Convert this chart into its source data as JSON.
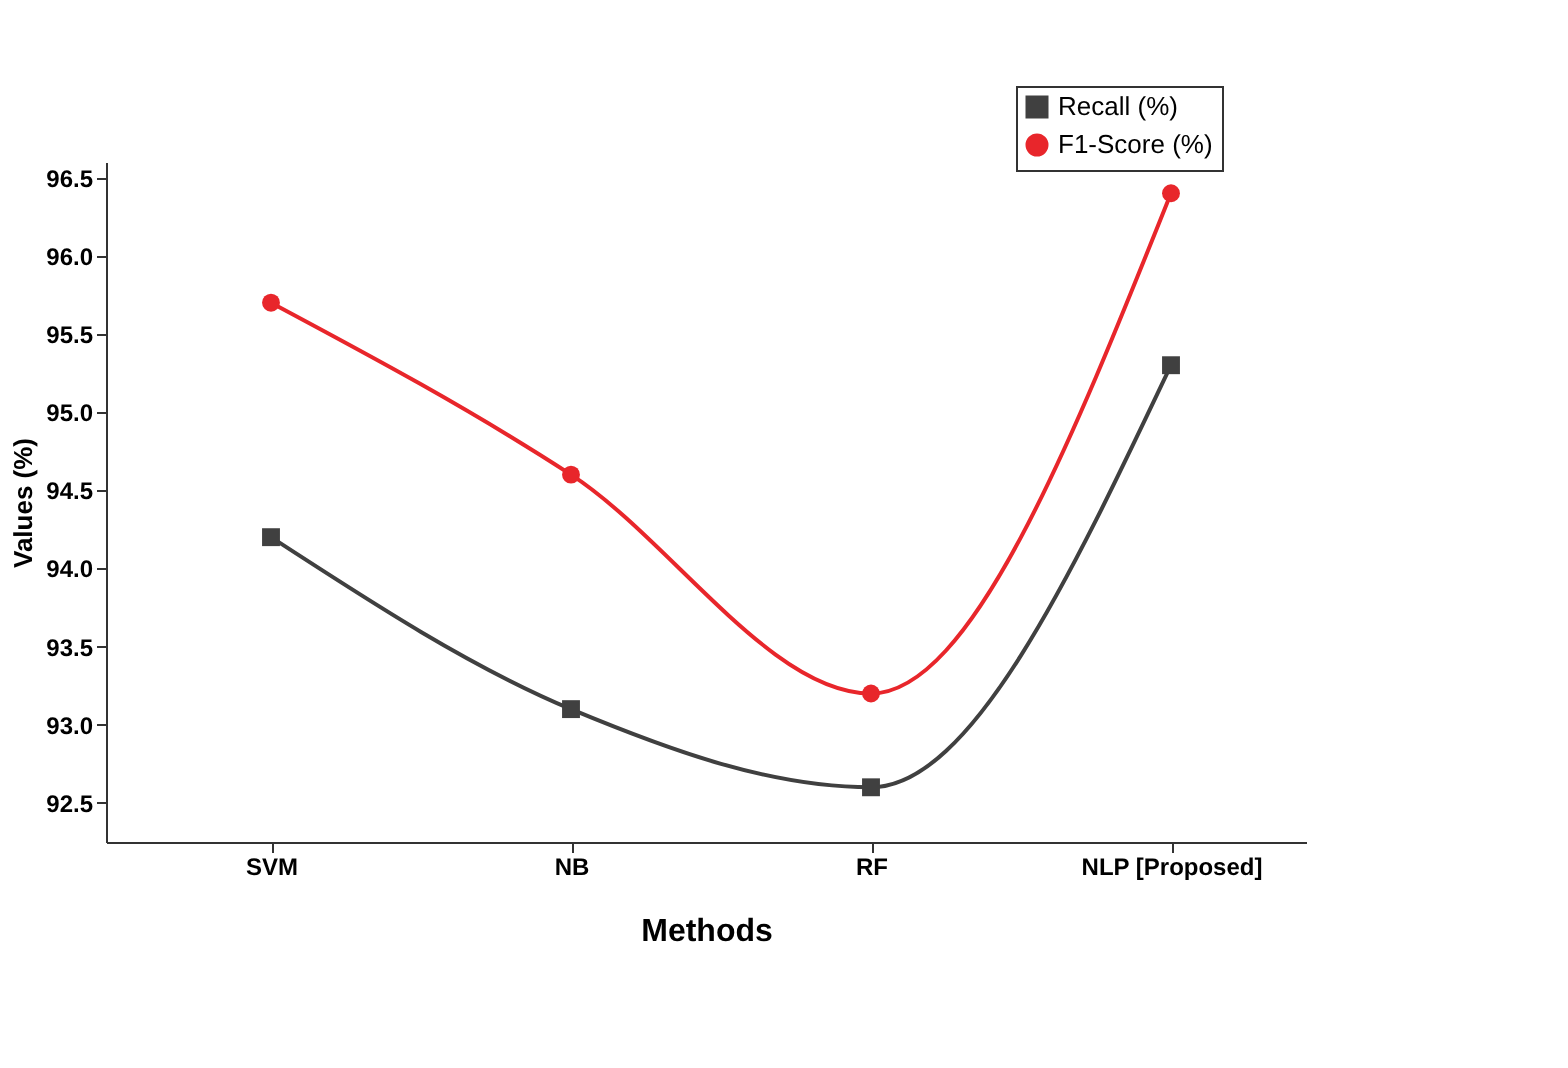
{
  "chart_data": {
    "type": "line",
    "xlabel": "Methods",
    "ylabel": "Values (%)",
    "categories": [
      "SVM",
      "NB",
      "RF",
      "NLP [Proposed]"
    ],
    "series": [
      {
        "name": "Recall (%)",
        "color": "#404040",
        "marker": "square",
        "values": [
          94.2,
          93.1,
          92.6,
          95.3
        ]
      },
      {
        "name": "F1-Score (%)",
        "color": "#e8262b",
        "marker": "circle",
        "values": [
          95.7,
          94.6,
          93.2,
          96.4
        ]
      }
    ],
    "ylim": [
      92.25,
      96.6
    ],
    "yticks": [
      92.5,
      {
        "value": 93,
        "label": "93.0"
      },
      93.5,
      {
        "value": 94,
        "label": "94.0"
      },
      94.5,
      {
        "value": 95,
        "label": "95.0"
      },
      95.5,
      {
        "value": 96,
        "label": "96.0"
      },
      96.5
    ],
    "grid": false,
    "legend": "top right",
    "line_style": "solid"
  }
}
